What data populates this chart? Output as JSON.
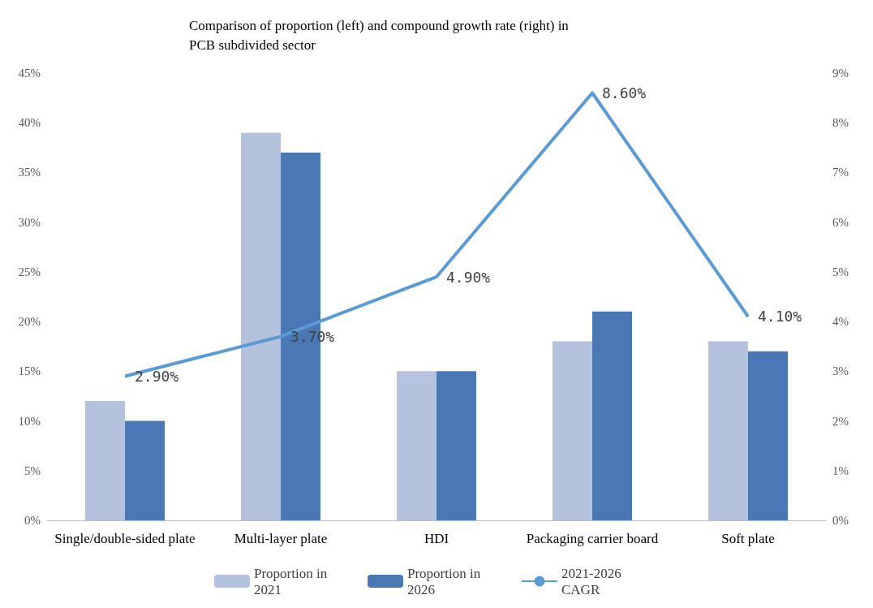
{
  "chart_data": {
    "type": "bar",
    "title": "Comparison of proportion (left) and compound growth rate (right) in PCB subdivided sector",
    "categories": [
      "Single/double-sided plate",
      "Multi-layer plate",
      "HDI",
      "Packaging carrier board",
      "Soft plate"
    ],
    "series": [
      {
        "name": "Proportion in 2021",
        "color": "#b4c2de",
        "values": [
          12,
          39,
          15,
          18,
          18
        ]
      },
      {
        "name": "Proportion in 2026",
        "color": "#4a78b4",
        "values": [
          10,
          37,
          15,
          21,
          17
        ]
      },
      {
        "name": "2021-2026 CAGR",
        "type": "line",
        "axis": "y2",
        "color": "#5b9bd5",
        "marker": "none",
        "values": [
          2.9,
          3.7,
          4.9,
          8.6,
          4.1
        ],
        "value_labels": [
          "2.90%",
          "3.70%",
          "4.90%",
          "8.60%",
          "4.10%"
        ]
      }
    ],
    "ylim": [
      0,
      45
    ],
    "yticks": [
      {
        "value": 0,
        "label": "0%"
      },
      {
        "value": 5,
        "label": "5%"
      },
      {
        "value": 10,
        "label": "10%"
      },
      {
        "value": 15,
        "label": "15%"
      },
      {
        "value": 20,
        "label": "20%"
      },
      {
        "value": 25,
        "label": "25%"
      },
      {
        "value": 30,
        "label": "30%"
      },
      {
        "value": 35,
        "label": "35%"
      },
      {
        "value": 40,
        "label": "40%"
      },
      {
        "value": 45,
        "label": "45%"
      }
    ],
    "y2lim": [
      0,
      9
    ],
    "y2ticks": [
      {
        "value": 0,
        "label": "0%"
      },
      {
        "value": 1,
        "label": "1%"
      },
      {
        "value": 2,
        "label": "2%"
      },
      {
        "value": 3,
        "label": "3%"
      },
      {
        "value": 4,
        "label": "4%"
      },
      {
        "value": 5,
        "label": "5%"
      },
      {
        "value": 6,
        "label": "6%"
      },
      {
        "value": 7,
        "label": "7%"
      },
      {
        "value": 8,
        "label": "8%"
      },
      {
        "value": 9,
        "label": "9%"
      }
    ],
    "grid": false,
    "legend": "bottom"
  }
}
